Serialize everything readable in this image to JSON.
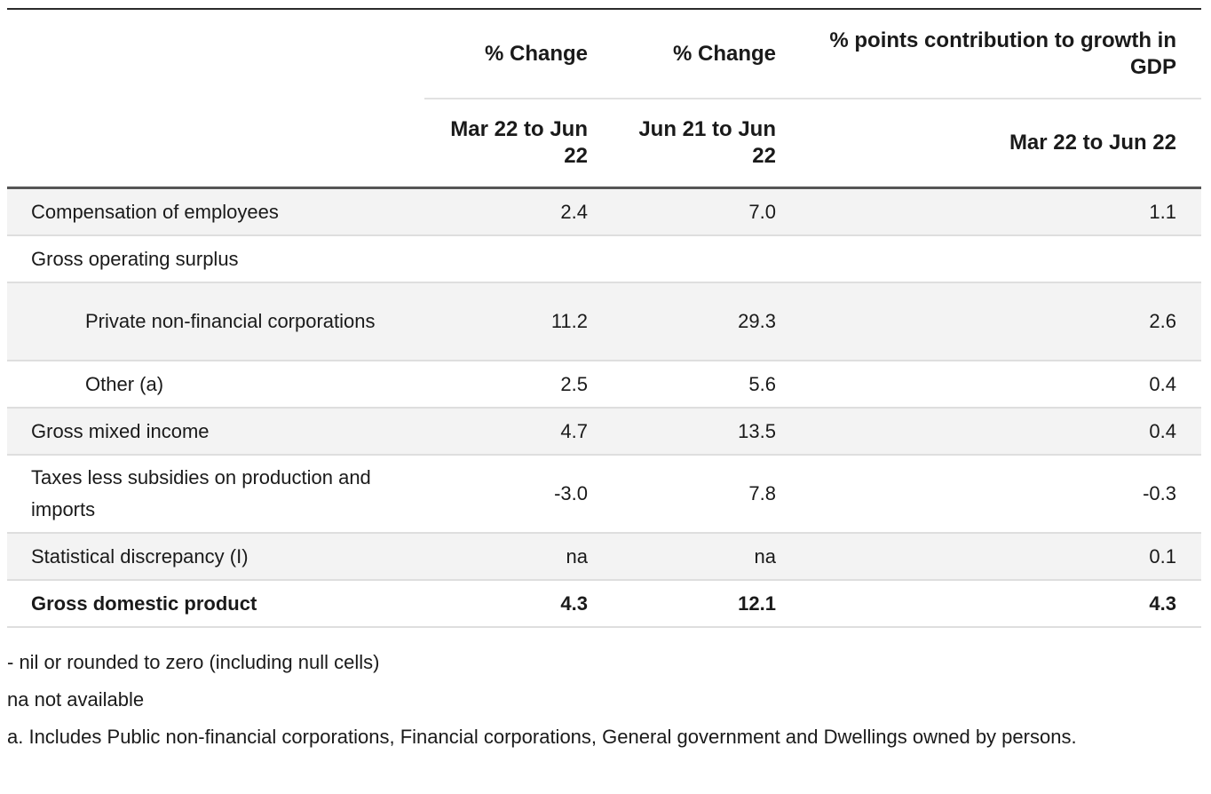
{
  "table": {
    "header": {
      "col1_top": "% Change",
      "col2_top": "% Change",
      "col3_top": "% points contribution to growth in GDP",
      "col1_sub": "Mar 22 to Jun 22",
      "col2_sub": "Jun 21 to Jun 22",
      "col3_sub": "Mar 22 to Jun 22"
    },
    "rows": [
      {
        "label": "Compensation of employees",
        "v1": "2.4",
        "v2": "7.0",
        "v3": "1.1"
      },
      {
        "label": "Gross operating surplus",
        "v1": "",
        "v2": "",
        "v3": ""
      },
      {
        "label": "Private non-financial corporations",
        "v1": "11.2",
        "v2": "29.3",
        "v3": "2.6"
      },
      {
        "label": "Other (a)",
        "v1": "2.5",
        "v2": "5.6",
        "v3": "0.4"
      },
      {
        "label": "Gross mixed income",
        "v1": "4.7",
        "v2": "13.5",
        "v3": "0.4"
      },
      {
        "label": "Taxes less subsidies on production and imports",
        "v1": "-3.0",
        "v2": "7.8",
        "v3": "-0.3"
      },
      {
        "label": "Statistical discrepancy (I)",
        "v1": "na",
        "v2": "na",
        "v3": "0.1"
      },
      {
        "label": "Gross domestic product",
        "v1": "4.3",
        "v2": "12.1",
        "v3": "4.3"
      }
    ]
  },
  "notes": [
    "- nil or rounded to zero (including null cells)",
    "na not available",
    "a. Includes Public non-financial corporations, Financial corporations, General government and Dwellings owned by persons."
  ]
}
